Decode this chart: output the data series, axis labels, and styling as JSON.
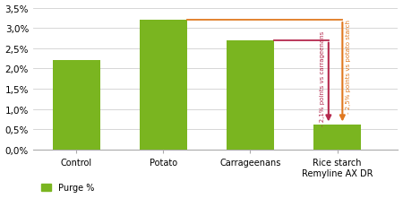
{
  "categories": [
    "Control",
    "Potato",
    "Carrageenans",
    "Rice starch\nRemyline AX DR"
  ],
  "values": [
    2.2,
    3.2,
    2.7,
    0.62
  ],
  "bar_color": "#7ab520",
  "background_color": "#ffffff",
  "ylim": [
    0,
    3.5
  ],
  "yticks": [
    0.0,
    0.5,
    1.0,
    1.5,
    2.0,
    2.5,
    3.0,
    3.5
  ],
  "ytick_labels": [
    "0,0%",
    "0,5%",
    "1,0%",
    "1,5%",
    "2,0%",
    "2,5%",
    "3,0%",
    "3,5%"
  ],
  "legend_label": "Purge %",
  "arrow1_color": "#b5294e",
  "arrow2_color": "#e07820",
  "arrow1_text": "- 2,1% points vs carrageenans",
  "arrow2_text": "- 2,5% points vs potato starch",
  "potato_val": 3.2,
  "carrag_val": 2.7,
  "rice_val": 0.62,
  "bar_width": 0.55
}
